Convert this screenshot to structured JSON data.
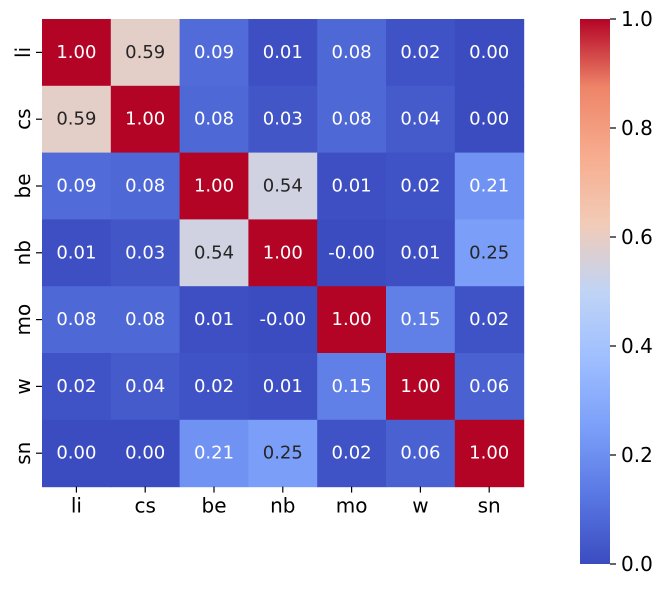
{
  "chart_data": {
    "type": "heatmap",
    "x_labels": [
      "li",
      "cs",
      "be",
      "nb",
      "mo",
      "w",
      "sn"
    ],
    "y_labels": [
      "li",
      "cs",
      "be",
      "nb",
      "mo",
      "w",
      "sn"
    ],
    "values": [
      [
        1.0,
        0.59,
        0.09,
        0.01,
        0.08,
        0.02,
        0.0
      ],
      [
        0.59,
        1.0,
        0.08,
        0.03,
        0.08,
        0.04,
        0.0
      ],
      [
        0.09,
        0.08,
        1.0,
        0.54,
        0.01,
        0.02,
        0.21
      ],
      [
        0.01,
        0.03,
        0.54,
        1.0,
        -0.0,
        0.01,
        0.25
      ],
      [
        0.08,
        0.08,
        0.01,
        -0.0,
        1.0,
        0.15,
        0.02
      ],
      [
        0.02,
        0.04,
        0.02,
        0.01,
        0.15,
        1.0,
        0.06
      ],
      [
        0.0,
        0.0,
        0.21,
        0.25,
        0.02,
        0.06,
        1.0
      ]
    ],
    "cell_labels": [
      [
        "1.00",
        "0.59",
        "0.09",
        "0.01",
        "0.08",
        "0.02",
        "0.00"
      ],
      [
        "0.59",
        "1.00",
        "0.08",
        "0.03",
        "0.08",
        "0.04",
        "0.00"
      ],
      [
        "0.09",
        "0.08",
        "1.00",
        "0.54",
        "0.01",
        "0.02",
        "0.21"
      ],
      [
        "0.01",
        "0.03",
        "0.54",
        "1.00",
        "-0.00",
        "0.01",
        "0.25"
      ],
      [
        "0.08",
        "0.08",
        "0.01",
        "-0.00",
        "1.00",
        "0.15",
        "0.02"
      ],
      [
        "0.02",
        "0.04",
        "0.02",
        "0.01",
        "0.15",
        "1.00",
        "0.06"
      ],
      [
        "0.00",
        "0.00",
        "0.21",
        "0.25",
        "0.02",
        "0.06",
        "1.00"
      ]
    ],
    "colormap": "coolwarm",
    "vmin": 0.0,
    "vmax": 1.0,
    "colorbar_ticks": [
      "0.0",
      "0.2",
      "0.4",
      "0.6",
      "0.8",
      "1.0"
    ],
    "title": "",
    "xlabel": "",
    "ylabel": ""
  }
}
